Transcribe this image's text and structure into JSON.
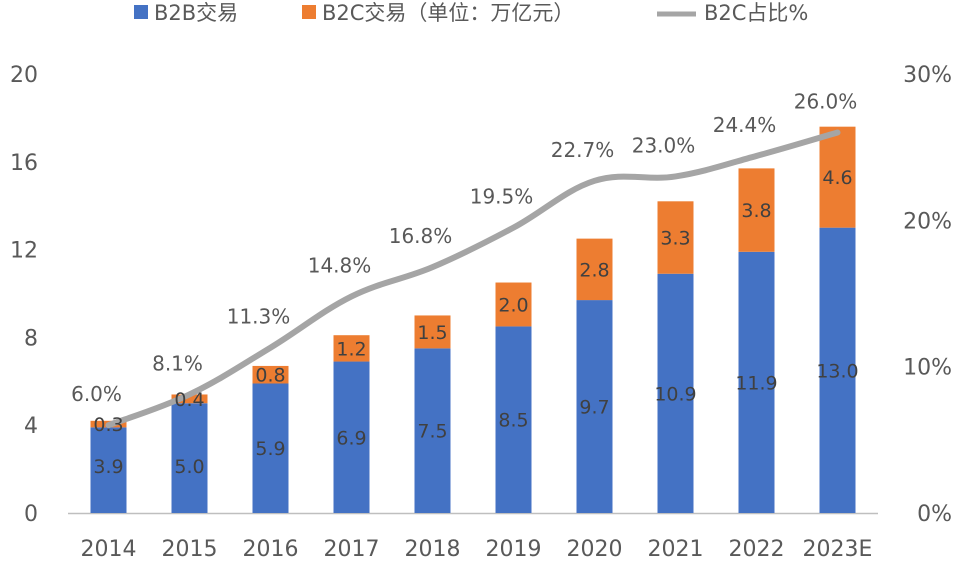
{
  "colors": {
    "b2b": "#4472c4",
    "b2c": "#ed7d31",
    "ratio": "#a5a5a5",
    "axis": "#bfbfbf",
    "text": "#595959"
  },
  "chart_data": {
    "type": "bar",
    "stacked": true,
    "categories": [
      "2014",
      "2015",
      "2016",
      "2017",
      "2018",
      "2019",
      "2020",
      "2021",
      "2022",
      "2023E"
    ],
    "series": [
      {
        "name": "B2B交易",
        "axis": "left",
        "values": [
          3.9,
          5.0,
          5.9,
          6.9,
          7.5,
          8.5,
          9.7,
          10.9,
          11.9,
          13.0
        ],
        "labels": [
          "3.9",
          "5.0",
          "5.9",
          "6.9",
          "7.5",
          "8.5",
          "9.7",
          "10.9",
          "11.9",
          "13.0"
        ]
      },
      {
        "name": "B2C交易（单位：万亿元）",
        "axis": "left",
        "values": [
          0.3,
          0.4,
          0.8,
          1.2,
          1.5,
          2.0,
          2.8,
          3.3,
          3.8,
          4.6
        ],
        "labels": [
          "0.3",
          "0.4",
          "0.8",
          "1.2",
          "1.5",
          "2.0",
          "2.8",
          "3.3",
          "3.8",
          "4.6"
        ]
      },
      {
        "name": "B2C占比%",
        "axis": "right",
        "type": "line",
        "values": [
          6.0,
          8.1,
          11.3,
          14.8,
          16.8,
          19.5,
          22.7,
          23.0,
          24.4,
          26.0
        ],
        "labels": [
          "6.0%",
          "8.1%",
          "11.3%",
          "14.8%",
          "16.8%",
          "19.5%",
          "22.7%",
          "23.0%",
          "24.4%",
          "26.0%"
        ]
      }
    ],
    "y_left": {
      "min": 0,
      "max": 20,
      "ticks": [
        "0",
        "4",
        "8",
        "12",
        "16",
        "20"
      ],
      "tick_values": [
        0,
        4,
        8,
        12,
        16,
        20
      ]
    },
    "y_right": {
      "min": 0,
      "max": 30,
      "ticks": [
        "0%",
        "10%",
        "20%",
        "30%"
      ],
      "tick_values": [
        0,
        10,
        20,
        30
      ]
    },
    "legend_position": "top",
    "grid": false
  }
}
